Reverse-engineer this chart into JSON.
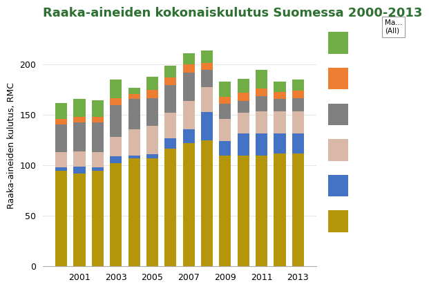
{
  "title": "Raaka-aineiden kokonaiskulutus Suomessa 2000-2013",
  "ylabel": "Raaka-aineiden kulutus, RMC",
  "years": [
    2000,
    2001,
    2002,
    2003,
    2004,
    2005,
    2006,
    2007,
    2008,
    2009,
    2010,
    2011,
    2012,
    2013
  ],
  "layers": {
    "maa_ainekset": [
      95,
      92,
      95,
      102,
      107,
      107,
      117,
      122,
      125,
      110,
      110,
      110,
      112,
      112
    ],
    "fossiiliset": [
      3,
      7,
      3,
      7,
      3,
      4,
      10,
      14,
      28,
      14,
      22,
      22,
      20,
      20
    ],
    "biomassa_muu": [
      15,
      15,
      15,
      19,
      26,
      28,
      25,
      28,
      25,
      22,
      20,
      22,
      22,
      22
    ],
    "metallit": [
      28,
      29,
      30,
      32,
      30,
      28,
      28,
      28,
      17,
      15,
      12,
      15,
      12,
      13
    ],
    "teollisuusmin": [
      5,
      5,
      5,
      7,
      5,
      8,
      7,
      8,
      7,
      7,
      8,
      7,
      7,
      7
    ],
    "biomassa_vihr": [
      16,
      18,
      17,
      18,
      6,
      13,
      12,
      11,
      12,
      15,
      14,
      19,
      10,
      11
    ]
  },
  "colors": {
    "maa_ainekset": "#b5960a",
    "fossiiliset": "#4472c4",
    "biomassa_muu": "#d9b8a8",
    "metallit": "#808080",
    "teollisuusmin": "#ed7d31",
    "biomassa_vihr": "#70ad47"
  },
  "ylim": [
    0,
    240
  ],
  "yticks": [
    0,
    50,
    100,
    150,
    200
  ],
  "title_color": "#2e7031",
  "title_fontsize": 13,
  "ylabel_fontsize": 9,
  "background_color": "#ffffff"
}
